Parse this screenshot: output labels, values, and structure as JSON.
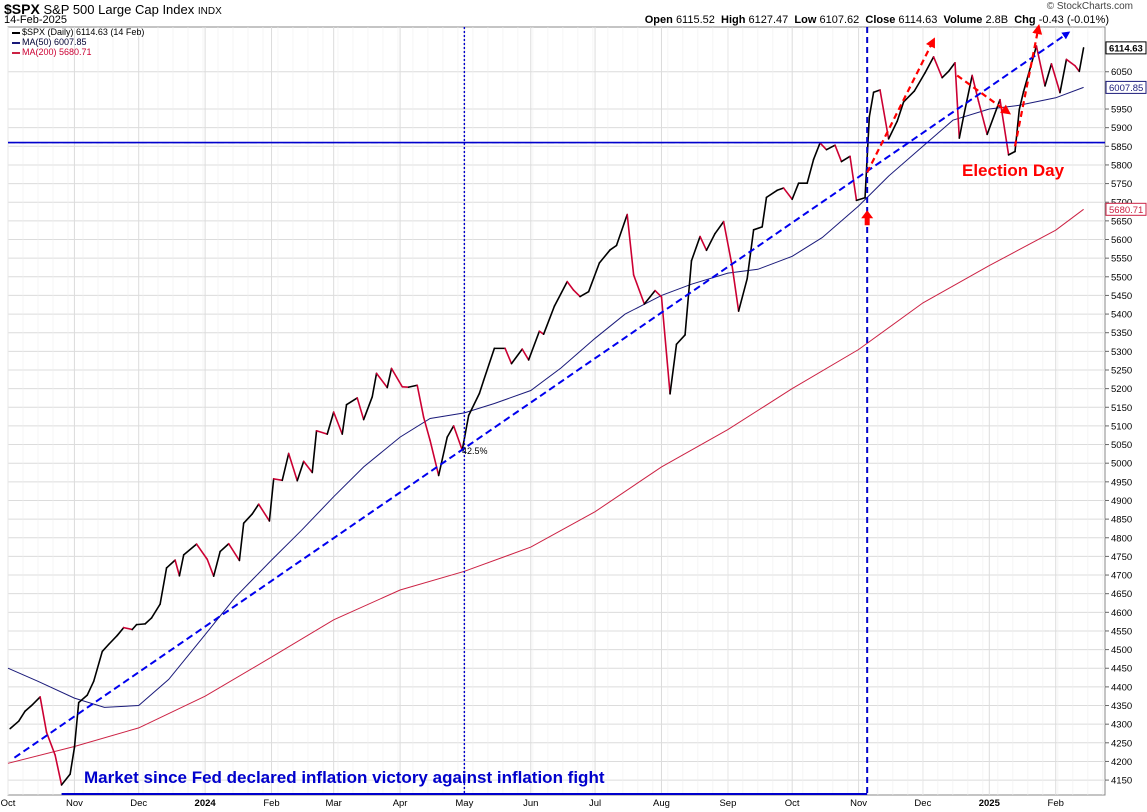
{
  "header": {
    "symbol": "$SPX",
    "name": "S&P 500 Large Cap Index",
    "exchange": "INDX",
    "date": "14-Feb-2025",
    "open_label": "Open",
    "open": "6115.52",
    "high_label": "High",
    "high": "6127.47",
    "low_label": "Low",
    "low": "6107.62",
    "close_label": "Close",
    "close": "6114.63",
    "volume_label": "Volume",
    "volume": "2.8B",
    "chg_label": "Chg",
    "chg": "-0.43 (-0.01%)",
    "watermark": "© StockCharts.com"
  },
  "legend": {
    "price": "$SPX (Daily) 6114.63 (14 Feb)",
    "ma50": "MA(50) 6007.85",
    "ma200": "MA(200) 5680.71"
  },
  "annotations": {
    "bottom_text": "Market since Fed declared inflation victory against inflation fight",
    "election": "Election Day",
    "pct_gain": "42.5%"
  },
  "colors": {
    "up": "#000000",
    "down": "#cc0033",
    "ma50": "#1a1a7a",
    "ma200": "#cc2244",
    "annotation_blue": "#0000cc",
    "annotation_red": "#ff0000",
    "grid": "#dcdcdc"
  },
  "chart_data": {
    "type": "line",
    "title": "$SPX S&P 500 Large Cap Index",
    "y_scale": "linear",
    "ylim": [
      4110,
      6170
    ],
    "y_ticks": [
      4150,
      4200,
      4250,
      4300,
      4350,
      4400,
      4450,
      4500,
      4550,
      4600,
      4650,
      4700,
      4750,
      4800,
      4850,
      4900,
      4950,
      5000,
      5050,
      5100,
      5150,
      5200,
      5250,
      5300,
      5350,
      5400,
      5450,
      5500,
      5550,
      5600,
      5650,
      5700,
      5750,
      5800,
      5850,
      5900,
      5950,
      6050
    ],
    "x_range": [
      "2023-10-01",
      "2025-02-24"
    ],
    "x_ticks": [
      {
        "date": "2023-10-01",
        "label": "Oct"
      },
      {
        "date": "2023-11-01",
        "label": "Nov"
      },
      {
        "date": "2023-12-01",
        "label": "Dec"
      },
      {
        "date": "2024-01-01",
        "label": "2024"
      },
      {
        "date": "2024-02-01",
        "label": "Feb"
      },
      {
        "date": "2024-03-01",
        "label": "Mar"
      },
      {
        "date": "2024-04-01",
        "label": "Apr"
      },
      {
        "date": "2024-05-01",
        "label": "May"
      },
      {
        "date": "2024-06-01",
        "label": "Jun"
      },
      {
        "date": "2024-07-01",
        "label": "Jul"
      },
      {
        "date": "2024-08-01",
        "label": "Aug"
      },
      {
        "date": "2024-09-01",
        "label": "Sep"
      },
      {
        "date": "2024-10-01",
        "label": "Oct"
      },
      {
        "date": "2024-11-01",
        "label": "Nov"
      },
      {
        "date": "2024-12-01",
        "label": "Dec"
      },
      {
        "date": "2025-01-01",
        "label": "2025"
      },
      {
        "date": "2025-02-01",
        "label": "Feb"
      }
    ],
    "grid": true,
    "legend_position": "top-left",
    "series": [
      {
        "name": "$SPX (Daily) 6114.63 (14 Feb)",
        "style": "price",
        "points": [
          [
            "2023-10-02",
            4288
          ],
          [
            "2023-10-06",
            4308
          ],
          [
            "2023-10-09",
            4335
          ],
          [
            "2023-10-12",
            4350
          ],
          [
            "2023-10-16",
            4373
          ],
          [
            "2023-10-19",
            4278
          ],
          [
            "2023-10-23",
            4217
          ],
          [
            "2023-10-26",
            4137
          ],
          [
            "2023-10-30",
            4166
          ],
          [
            "2023-11-01",
            4237
          ],
          [
            "2023-11-03",
            4358
          ],
          [
            "2023-11-07",
            4378
          ],
          [
            "2023-11-10",
            4415
          ],
          [
            "2023-11-14",
            4495
          ],
          [
            "2023-11-17",
            4514
          ],
          [
            "2023-11-21",
            4538
          ],
          [
            "2023-11-24",
            4559
          ],
          [
            "2023-11-28",
            4554
          ],
          [
            "2023-11-30",
            4567
          ],
          [
            "2023-12-04",
            4569
          ],
          [
            "2023-12-07",
            4585
          ],
          [
            "2023-12-11",
            4622
          ],
          [
            "2023-12-14",
            4719
          ],
          [
            "2023-12-18",
            4740
          ],
          [
            "2023-12-20",
            4698
          ],
          [
            "2023-12-22",
            4754
          ],
          [
            "2023-12-28",
            4783
          ],
          [
            "2024-01-02",
            4742
          ],
          [
            "2024-01-05",
            4697
          ],
          [
            "2024-01-08",
            4763
          ],
          [
            "2024-01-12",
            4784
          ],
          [
            "2024-01-17",
            4739
          ],
          [
            "2024-01-19",
            4839
          ],
          [
            "2024-01-23",
            4864
          ],
          [
            "2024-01-26",
            4890
          ],
          [
            "2024-01-31",
            4845
          ],
          [
            "2024-02-02",
            4958
          ],
          [
            "2024-02-06",
            4954
          ],
          [
            "2024-02-09",
            5026
          ],
          [
            "2024-02-13",
            4953
          ],
          [
            "2024-02-16",
            5005
          ],
          [
            "2024-02-20",
            4975
          ],
          [
            "2024-02-22",
            5087
          ],
          [
            "2024-02-27",
            5078
          ],
          [
            "2024-03-01",
            5137
          ],
          [
            "2024-03-05",
            5078
          ],
          [
            "2024-03-07",
            5157
          ],
          [
            "2024-03-12",
            5175
          ],
          [
            "2024-03-15",
            5117
          ],
          [
            "2024-03-19",
            5178
          ],
          [
            "2024-03-21",
            5241
          ],
          [
            "2024-03-26",
            5203
          ],
          [
            "2024-03-28",
            5254
          ],
          [
            "2024-04-02",
            5205
          ],
          [
            "2024-04-05",
            5204
          ],
          [
            "2024-04-09",
            5209
          ],
          [
            "2024-04-12",
            5123
          ],
          [
            "2024-04-15",
            5061
          ],
          [
            "2024-04-19",
            4967
          ],
          [
            "2024-04-23",
            5070
          ],
          [
            "2024-04-26",
            5100
          ],
          [
            "2024-04-30",
            5035
          ],
          [
            "2024-05-03",
            5128
          ],
          [
            "2024-05-08",
            5187
          ],
          [
            "2024-05-10",
            5222
          ],
          [
            "2024-05-15",
            5308
          ],
          [
            "2024-05-20",
            5308
          ],
          [
            "2024-05-23",
            5267
          ],
          [
            "2024-05-28",
            5306
          ],
          [
            "2024-05-31",
            5277
          ],
          [
            "2024-06-05",
            5354
          ],
          [
            "2024-06-07",
            5346
          ],
          [
            "2024-06-12",
            5421
          ],
          [
            "2024-06-18",
            5487
          ],
          [
            "2024-06-21",
            5464
          ],
          [
            "2024-06-24",
            5447
          ],
          [
            "2024-06-28",
            5460
          ],
          [
            "2024-07-03",
            5537
          ],
          [
            "2024-07-08",
            5572
          ],
          [
            "2024-07-11",
            5584
          ],
          [
            "2024-07-16",
            5667
          ],
          [
            "2024-07-19",
            5505
          ],
          [
            "2024-07-24",
            5427
          ],
          [
            "2024-07-29",
            5463
          ],
          [
            "2024-08-01",
            5446
          ],
          [
            "2024-08-05",
            5186
          ],
          [
            "2024-08-08",
            5319
          ],
          [
            "2024-08-12",
            5344
          ],
          [
            "2024-08-15",
            5543
          ],
          [
            "2024-08-19",
            5608
          ],
          [
            "2024-08-22",
            5571
          ],
          [
            "2024-08-26",
            5616
          ],
          [
            "2024-08-30",
            5648
          ],
          [
            "2024-09-03",
            5528
          ],
          [
            "2024-09-06",
            5408
          ],
          [
            "2024-09-10",
            5495
          ],
          [
            "2024-09-13",
            5626
          ],
          [
            "2024-09-17",
            5634
          ],
          [
            "2024-09-19",
            5713
          ],
          [
            "2024-09-24",
            5732
          ],
          [
            "2024-09-27",
            5738
          ],
          [
            "2024-10-01",
            5708
          ],
          [
            "2024-10-04",
            5751
          ],
          [
            "2024-10-08",
            5751
          ],
          [
            "2024-10-11",
            5815
          ],
          [
            "2024-10-14",
            5859
          ],
          [
            "2024-10-17",
            5841
          ],
          [
            "2024-10-21",
            5853
          ],
          [
            "2024-10-24",
            5809
          ],
          [
            "2024-10-28",
            5823
          ],
          [
            "2024-10-31",
            5705
          ],
          [
            "2024-11-04",
            5712
          ],
          [
            "2024-11-06",
            5929
          ],
          [
            "2024-11-08",
            5995
          ],
          [
            "2024-11-11",
            6001
          ],
          [
            "2024-11-15",
            5870
          ],
          [
            "2024-11-19",
            5917
          ],
          [
            "2024-11-22",
            5969
          ],
          [
            "2024-11-27",
            5998
          ],
          [
            "2024-12-02",
            6047
          ],
          [
            "2024-12-06",
            6090
          ],
          [
            "2024-12-10",
            6034
          ],
          [
            "2024-12-13",
            6051
          ],
          [
            "2024-12-16",
            6074
          ],
          [
            "2024-12-18",
            5872
          ],
          [
            "2024-12-20",
            5930
          ],
          [
            "2024-12-24",
            6040
          ],
          [
            "2024-12-27",
            5970
          ],
          [
            "2024-12-31",
            5882
          ],
          [
            "2025-01-06",
            5975
          ],
          [
            "2025-01-10",
            5827
          ],
          [
            "2025-01-13",
            5836
          ],
          [
            "2025-01-15",
            5949
          ],
          [
            "2025-01-17",
            5997
          ],
          [
            "2025-01-23",
            6119
          ],
          [
            "2025-01-27",
            6012
          ],
          [
            "2025-01-30",
            6071
          ],
          [
            "2025-02-03",
            5994
          ],
          [
            "2025-02-06",
            6083
          ],
          [
            "2025-02-10",
            6066
          ],
          [
            "2025-02-12",
            6051
          ],
          [
            "2025-02-14",
            6114
          ]
        ]
      },
      {
        "name": "MA(50) 6007.85",
        "style": "ma50",
        "points": [
          [
            "2023-10-01",
            4450
          ],
          [
            "2023-10-15",
            4415
          ],
          [
            "2023-11-01",
            4370
          ],
          [
            "2023-11-15",
            4345
          ],
          [
            "2023-12-01",
            4350
          ],
          [
            "2023-12-15",
            4420
          ],
          [
            "2024-01-01",
            4540
          ],
          [
            "2024-01-15",
            4640
          ],
          [
            "2024-02-01",
            4740
          ],
          [
            "2024-02-15",
            4820
          ],
          [
            "2024-03-01",
            4910
          ],
          [
            "2024-03-15",
            4990
          ],
          [
            "2024-04-01",
            5070
          ],
          [
            "2024-04-15",
            5120
          ],
          [
            "2024-05-01",
            5135
          ],
          [
            "2024-05-15",
            5160
          ],
          [
            "2024-06-01",
            5195
          ],
          [
            "2024-06-15",
            5255
          ],
          [
            "2024-07-01",
            5335
          ],
          [
            "2024-07-15",
            5400
          ],
          [
            "2024-08-01",
            5450
          ],
          [
            "2024-08-15",
            5480
          ],
          [
            "2024-09-01",
            5510
          ],
          [
            "2024-09-15",
            5520
          ],
          [
            "2024-10-01",
            5555
          ],
          [
            "2024-10-15",
            5605
          ],
          [
            "2024-11-01",
            5690
          ],
          [
            "2024-11-15",
            5770
          ],
          [
            "2024-12-01",
            5850
          ],
          [
            "2024-12-15",
            5920
          ],
          [
            "2025-01-01",
            5950
          ],
          [
            "2025-01-15",
            5960
          ],
          [
            "2025-02-01",
            5980
          ],
          [
            "2025-02-14",
            6008
          ]
        ]
      },
      {
        "name": "MA(200) 5680.71",
        "style": "ma200",
        "points": [
          [
            "2023-10-01",
            4195
          ],
          [
            "2023-11-01",
            4240
          ],
          [
            "2023-12-01",
            4290
          ],
          [
            "2024-01-01",
            4375
          ],
          [
            "2024-02-01",
            4480
          ],
          [
            "2024-03-01",
            4580
          ],
          [
            "2024-04-01",
            4660
          ],
          [
            "2024-05-01",
            4710
          ],
          [
            "2024-06-01",
            4775
          ],
          [
            "2024-07-01",
            4870
          ],
          [
            "2024-08-01",
            4990
          ],
          [
            "2024-09-01",
            5090
          ],
          [
            "2024-10-01",
            5200
          ],
          [
            "2024-11-01",
            5305
          ],
          [
            "2024-12-01",
            5430
          ],
          [
            "2025-01-01",
            5530
          ],
          [
            "2025-02-01",
            5625
          ],
          [
            "2025-02-14",
            5681
          ]
        ]
      }
    ],
    "reference_lines": [
      {
        "kind": "h",
        "y": 5860,
        "style": "solid"
      },
      {
        "kind": "h",
        "y": 5860,
        "style": "dashed"
      },
      {
        "kind": "v",
        "x": "2024-05-01",
        "style": "dotted"
      },
      {
        "kind": "v",
        "x": "2024-11-05",
        "style": "dashed"
      }
    ],
    "trendlines": [
      {
        "color": "blue",
        "from": [
          "2023-10-04",
          4210
        ],
        "to": [
          "2025-02-07",
          6155
        ],
        "arrow": true
      },
      {
        "color": "red",
        "from": [
          "2024-11-05",
          5780
        ],
        "to": [
          "2024-12-06",
          6135
        ],
        "arrow": true
      },
      {
        "color": "red",
        "from": [
          "2024-12-17",
          6040
        ],
        "to": [
          "2025-01-10",
          5940
        ],
        "arrow": true
      },
      {
        "color": "red",
        "from": [
          "2025-01-13",
          5850
        ],
        "to": [
          "2025-01-24",
          6170
        ],
        "arrow": true
      }
    ],
    "last_values": {
      "price": "6114.63",
      "ma50": "6007.85",
      "ma200": "5680.71"
    }
  }
}
